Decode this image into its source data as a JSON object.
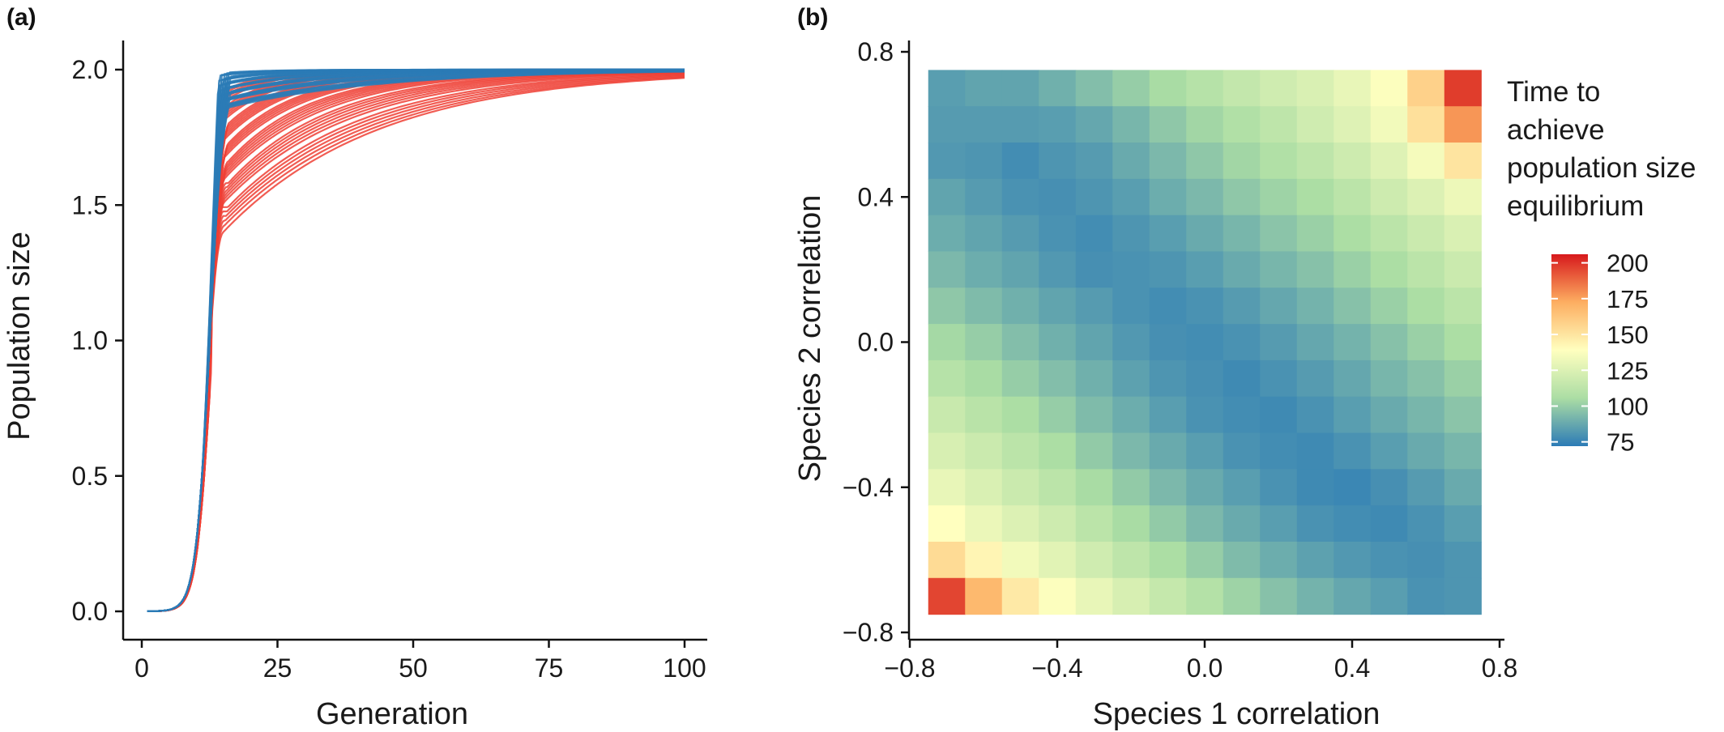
{
  "chart_data": [
    {
      "panel_label": "(a)",
      "type": "line",
      "xlabel": "Generation",
      "ylabel": "Population size",
      "xlim": [
        0,
        100
      ],
      "ylim": [
        0,
        2.0
      ],
      "xticks": [
        "0",
        "25",
        "50",
        "75",
        "100"
      ],
      "yticks": [
        "0.0",
        "0.5",
        "1.0",
        "1.5",
        "2.0"
      ],
      "grid": false,
      "series": [
        {
          "color": "#2c7bb6",
          "count": 40,
          "max_generation": 100,
          "carrying_capacity": 2.0,
          "midpoint_generation": 12.5,
          "jump_generation_range": [
            14,
            16.5
          ],
          "jump_population_range": [
            1.85,
            1.99
          ]
        },
        {
          "color": "#ee4035",
          "count": 40,
          "max_generation": 100,
          "carrying_capacity": 2.0,
          "midpoint_generation": 12.5,
          "jump_generation_range": [
            15,
            16
          ],
          "jump_population_range": [
            1.4,
            1.93
          ]
        }
      ]
    },
    {
      "panel_label": "(b)",
      "type": "heatmap",
      "xlabel": "Species 1 correlation",
      "ylabel": "Species 2 correlation",
      "xlim": [
        -0.8,
        0.8
      ],
      "ylim": [
        -0.8,
        0.8
      ],
      "xticks": [
        "−0.8",
        "−0.4",
        "0.0",
        "0.4",
        "0.8"
      ],
      "yticks": [
        "−0.8",
        "−0.4",
        "0.0",
        "0.4",
        "0.8"
      ],
      "grid_cells": 15,
      "cell_range": [
        -0.75,
        0.75
      ],
      "rows_note": "rows listed from top (species 2 = 0.7) to bottom (species 2 = -0.7); columns from species 1 = -0.7 to 0.7",
      "values": [
        [
          84,
          86,
          86,
          90,
          95,
          100,
          105,
          110,
          115,
          120,
          124,
          130,
          138,
          158,
          198
        ],
        [
          83,
          83,
          83,
          84,
          87,
          92,
          98,
          103,
          108,
          113,
          120,
          126,
          134,
          152,
          178
        ],
        [
          82,
          81,
          78,
          81,
          83,
          88,
          93,
          98,
          103,
          108,
          113,
          119,
          126,
          135,
          150
        ],
        [
          86,
          83,
          80,
          79,
          81,
          84,
          89,
          93,
          98,
          102,
          106,
          112,
          119,
          125,
          132
        ],
        [
          89,
          86,
          83,
          80,
          78,
          81,
          84,
          88,
          92,
          97,
          101,
          106,
          112,
          118,
          124
        ],
        [
          93,
          89,
          86,
          82,
          79,
          80,
          81,
          84,
          88,
          92,
          96,
          101,
          106,
          112,
          118
        ],
        [
          98,
          94,
          90,
          86,
          83,
          80,
          78,
          80,
          83,
          87,
          91,
          96,
          101,
          106,
          112
        ],
        [
          104,
          100,
          95,
          90,
          86,
          82,
          79,
          78,
          80,
          83,
          87,
          91,
          96,
          101,
          106
        ],
        [
          110,
          105,
          100,
          95,
          90,
          85,
          81,
          79,
          77,
          80,
          83,
          87,
          92,
          96,
          101
        ],
        [
          117,
          111,
          106,
          100,
          94,
          89,
          84,
          80,
          78,
          77,
          80,
          84,
          88,
          92,
          97
        ],
        [
          123,
          118,
          112,
          106,
          99,
          93,
          88,
          84,
          80,
          78,
          77,
          80,
          84,
          88,
          92
        ],
        [
          130,
          124,
          118,
          112,
          105,
          99,
          93,
          88,
          84,
          80,
          77,
          76,
          79,
          83,
          88
        ],
        [
          139,
          131,
          125,
          119,
          112,
          105,
          99,
          93,
          88,
          84,
          80,
          78,
          77,
          80,
          84
        ],
        [
          154,
          143,
          134,
          127,
          120,
          113,
          106,
          100,
          94,
          89,
          85,
          82,
          80,
          79,
          81
        ],
        [
          196,
          168,
          148,
          138,
          130,
          123,
          116,
          109,
          102,
          96,
          91,
          87,
          84,
          80,
          81
        ]
      ],
      "legend": {
        "title_lines": [
          "Time to",
          "achieve",
          "population size",
          "equilibrium"
        ],
        "range": [
          72,
          206
        ],
        "ticks": [
          "75",
          "100",
          "125",
          "150",
          "175",
          "200"
        ],
        "colormap": [
          "#2c7bb6",
          "#abdda4",
          "#ffffbf",
          "#fdae61",
          "#d7191c"
        ]
      }
    }
  ]
}
